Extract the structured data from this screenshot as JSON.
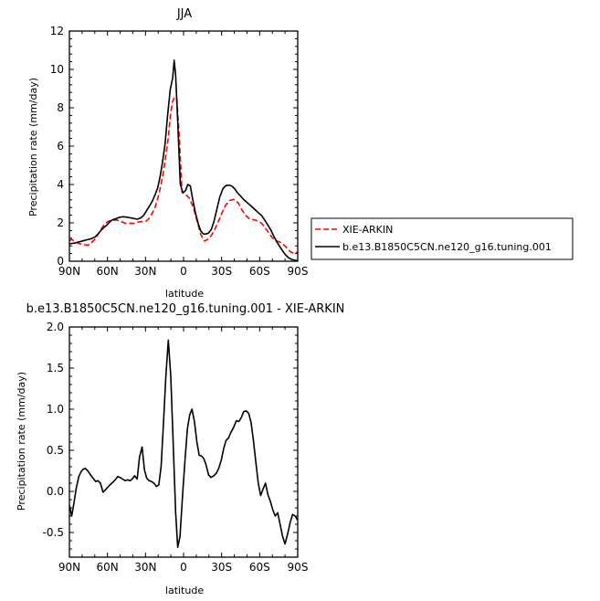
{
  "chart_data": [
    {
      "type": "line",
      "title": "JJA",
      "xlabel": "latitude",
      "ylabel": "Precipitation rate  (mm/day)",
      "xlim": [
        90,
        -90
      ],
      "ylim": [
        0,
        12
      ],
      "x_ticks": [
        90,
        60,
        30,
        0,
        -30,
        -60,
        -90
      ],
      "x_tick_labels": [
        "90N",
        "60N",
        "30N",
        "0",
        "30S",
        "60S",
        "90S"
      ],
      "y_ticks": [
        0,
        2,
        4,
        6,
        8,
        10,
        12
      ],
      "y_tick_labels": [
        "0",
        "2",
        "4",
        "6",
        "8",
        "10",
        "12"
      ],
      "grid": false,
      "legend_position": "right",
      "series": [
        {
          "name": "XIE-ARKIN",
          "color": "#ff0000",
          "dash": "dashed",
          "x": [
            89.9,
            88.2,
            86.6,
            83.8,
            81.4,
            79.3,
            76.2,
            74.1,
            72.4,
            69.3,
            66.6,
            63.9,
            61.7,
            59.7,
            57.8,
            55.9,
            52.8,
            49.4,
            46.1,
            42.8,
            39.5,
            37.2,
            34.1,
            31.9,
            29.3,
            27.0,
            24.2,
            22.2,
            20.2,
            18.3,
            16.4,
            15.3,
            14.2,
            12.2,
            10.3,
            8.8,
            7.3,
            5.3,
            3.3,
            1.2,
            -1.6,
            -4.4,
            -7.7,
            -10.4,
            -13.5,
            -16.5,
            -19.7,
            -22.2,
            -24.9,
            -27.8,
            -30.5,
            -33.2,
            -36.5,
            -39.5,
            -43.2,
            -45.7,
            -49.1,
            -51.8,
            -55.4,
            -59.3,
            -62.0,
            -66.3,
            -70.0,
            -72.3,
            -75.5,
            -79.0,
            -81.3,
            -84.2,
            -87.0,
            -89.9
          ],
          "y": [
            1.06,
            1.15,
            1.06,
            0.97,
            0.9,
            0.88,
            0.84,
            0.86,
            0.97,
            1.19,
            1.5,
            1.79,
            1.96,
            2.07,
            2.11,
            2.13,
            2.15,
            2.07,
            1.98,
            1.98,
            1.97,
            2.02,
            2.06,
            2.07,
            2.1,
            2.25,
            2.56,
            2.86,
            3.31,
            3.84,
            4.47,
            4.94,
            5.39,
            6.38,
            7.61,
            8.31,
            8.51,
            8.5,
            6.4,
            3.6,
            3.49,
            3.3,
            2.81,
            2.16,
            1.4,
            1.05,
            1.16,
            1.37,
            1.7,
            2.12,
            2.56,
            2.92,
            3.17,
            3.22,
            3.04,
            2.7,
            2.38,
            2.22,
            2.16,
            2.09,
            1.95,
            1.56,
            1.22,
            1.08,
            1.01,
            0.86,
            0.7,
            0.5,
            0.41,
            0.47
          ]
        },
        {
          "name": "b.e13.B1850C5CN.ne120_g16.tuning.001",
          "color": "#000000",
          "dash": "solid",
          "x": [
            89.9,
            87.7,
            85.6,
            83.4,
            81.1,
            78.4,
            76.2,
            74.2,
            72.4,
            69.6,
            67.2,
            64.8,
            62.8,
            60.5,
            58.4,
            56.3,
            53.8,
            50.5,
            47.8,
            45.0,
            42.0,
            39.2,
            36.5,
            33.7,
            31.5,
            28.7,
            26.6,
            24.5,
            22.4,
            20.4,
            18.5,
            16.6,
            14.6,
            12.6,
            10.5,
            8.6,
            7.4,
            6.3,
            4.7,
            2.6,
            0.5,
            -1.5,
            -3.3,
            -5.3,
            -7.3,
            -9.4,
            -11.6,
            -13.7,
            -15.8,
            -17.6,
            -19.7,
            -21.9,
            -24.0,
            -26.3,
            -28.5,
            -31.0,
            -33.5,
            -36.1,
            -38.3,
            -40.4,
            -42.5,
            -44.9,
            -47.3,
            -50.2,
            -53.2,
            -56.0,
            -58.8,
            -61.6,
            -64.2,
            -66.6,
            -68.9,
            -71.0,
            -73.5,
            -75.9,
            -78.2,
            -80.6,
            -83.0,
            -85.4,
            -87.7,
            -89.9
          ],
          "y": [
            0.91,
            0.93,
            0.95,
            0.99,
            1.03,
            1.08,
            1.12,
            1.15,
            1.18,
            1.27,
            1.44,
            1.63,
            1.76,
            1.88,
            2.04,
            2.15,
            2.21,
            2.29,
            2.32,
            2.3,
            2.26,
            2.23,
            2.19,
            2.26,
            2.39,
            2.68,
            2.91,
            3.15,
            3.48,
            3.83,
            4.41,
            5.15,
            6.09,
            7.6,
            8.95,
            9.55,
            10.48,
            9.74,
            7.39,
            4.02,
            3.56,
            3.68,
            4.0,
            3.93,
            3.21,
            2.5,
            1.95,
            1.56,
            1.42,
            1.42,
            1.47,
            1.66,
            2.07,
            2.72,
            3.34,
            3.78,
            3.95,
            3.96,
            3.91,
            3.77,
            3.57,
            3.4,
            3.22,
            3.05,
            2.88,
            2.71,
            2.54,
            2.37,
            2.12,
            1.87,
            1.62,
            1.32,
            1.01,
            0.76,
            0.53,
            0.32,
            0.17,
            0.09,
            0.05,
            0.03
          ]
        }
      ]
    },
    {
      "type": "line",
      "title": "b.e13.B1850C5CN.ne120_g16.tuning.001  -  XIE-ARKIN",
      "xlabel": "latitude",
      "ylabel": "Precipitation rate  (mm/day)",
      "xlim": [
        90,
        -90
      ],
      "ylim": [
        -0.8,
        2.0
      ],
      "x_ticks": [
        90,
        60,
        30,
        0,
        -30,
        -60,
        -90
      ],
      "x_tick_labels": [
        "90N",
        "60N",
        "30N",
        "0",
        "30S",
        "60S",
        "90S"
      ],
      "y_ticks": [
        -0.5,
        0.0,
        0.5,
        1.0,
        1.5,
        2.0
      ],
      "y_tick_labels": [
        "-0.5",
        "0.0",
        "0.5",
        "1.0",
        "1.5",
        "2.0"
      ],
      "grid": false,
      "series": [
        {
          "color": "#000000",
          "dash": "solid",
          "x": [
            89.9,
            88.2,
            86.4,
            84.6,
            82.6,
            80.8,
            79.1,
            77.5,
            75.5,
            73.3,
            71.3,
            69.3,
            67.5,
            65.5,
            63.5,
            61.5,
            59.8,
            58.0,
            55.9,
            53.9,
            51.9,
            50.1,
            48.1,
            46.0,
            44.0,
            42.2,
            40.5,
            38.6,
            36.6,
            34.7,
            32.7,
            30.8,
            29.0,
            27.2,
            25.2,
            23.3,
            21.4,
            19.5,
            17.7,
            15.8,
            14.0,
            12.0,
            10.1,
            8.2,
            6.3,
            4.6,
            2.8,
            0.8,
            -1.2,
            -3.0,
            -4.8,
            -6.6,
            -8.6,
            -10.5,
            -12.3,
            -14.1,
            -15.9,
            -17.8,
            -19.7,
            -21.7,
            -23.8,
            -25.8,
            -27.7,
            -29.7,
            -31.6,
            -33.5,
            -35.5,
            -37.4,
            -39.5,
            -41.6,
            -43.7,
            -45.6,
            -47.4,
            -49.3,
            -51.3,
            -53.2,
            -55.1,
            -57.0,
            -58.9,
            -60.8,
            -62.7,
            -64.6,
            -66.5,
            -68.4,
            -70.3,
            -72.3,
            -74.2,
            -76.1,
            -78.1,
            -80.0,
            -82.0,
            -84.0,
            -86.0,
            -88.0,
            -89.9
          ],
          "y": [
            -0.17,
            -0.3,
            -0.14,
            0.04,
            0.18,
            0.24,
            0.27,
            0.28,
            0.25,
            0.2,
            0.16,
            0.12,
            0.13,
            0.1,
            -0.01,
            0.02,
            0.05,
            0.08,
            0.11,
            0.14,
            0.18,
            0.17,
            0.15,
            0.13,
            0.14,
            0.13,
            0.15,
            0.19,
            0.15,
            0.42,
            0.54,
            0.26,
            0.16,
            0.13,
            0.12,
            0.1,
            0.06,
            0.08,
            0.3,
            0.85,
            1.4,
            1.84,
            1.4,
            0.6,
            -0.25,
            -0.68,
            -0.55,
            -0.05,
            0.4,
            0.76,
            0.93,
            1.0,
            0.85,
            0.6,
            0.44,
            0.43,
            0.4,
            0.32,
            0.2,
            0.17,
            0.19,
            0.22,
            0.28,
            0.38,
            0.52,
            0.62,
            0.65,
            0.72,
            0.78,
            0.86,
            0.85,
            0.9,
            0.97,
            0.98,
            0.95,
            0.84,
            0.62,
            0.35,
            0.1,
            -0.05,
            0.03,
            0.1,
            -0.04,
            -0.12,
            -0.22,
            -0.3,
            -0.26,
            -0.4,
            -0.55,
            -0.64,
            -0.52,
            -0.38,
            -0.28,
            -0.3,
            -0.35
          ]
        }
      ]
    }
  ]
}
